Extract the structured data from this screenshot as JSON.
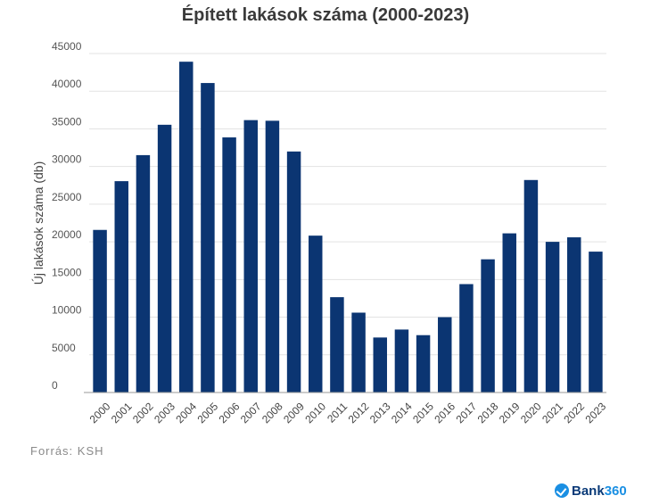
{
  "chart_data": {
    "type": "bar",
    "title": "Épített lakások száma (2000-2023)",
    "ylabel": "Új lakások száma (db)",
    "xlabel": "",
    "categories": [
      "2000",
      "2001",
      "2002",
      "2003",
      "2004",
      "2005",
      "2006",
      "2007",
      "2008",
      "2009",
      "2010",
      "2011",
      "2012",
      "2013",
      "2014",
      "2015",
      "2016",
      "2017",
      "2018",
      "2019",
      "2020",
      "2021",
      "2022",
      "2023"
    ],
    "values": [
      21583,
      28054,
      31511,
      35543,
      43913,
      41084,
      33864,
      36159,
      36075,
      31994,
      20823,
      12655,
      10600,
      7300,
      8358,
      7612,
      10000,
      14389,
      17681,
      21127,
      28208,
      20000,
      20600,
      18700
    ],
    "ylim": [
      0,
      45000
    ],
    "yticks": [
      0,
      5000,
      10000,
      15000,
      20000,
      25000,
      30000,
      35000,
      40000,
      45000
    ],
    "grid": true,
    "bar_color": "#0b3572"
  },
  "footer": {
    "source": "Forrás: KSH"
  },
  "logo": {
    "text": "Bank",
    "number": "360",
    "mark_icon": "check-circle-icon"
  }
}
